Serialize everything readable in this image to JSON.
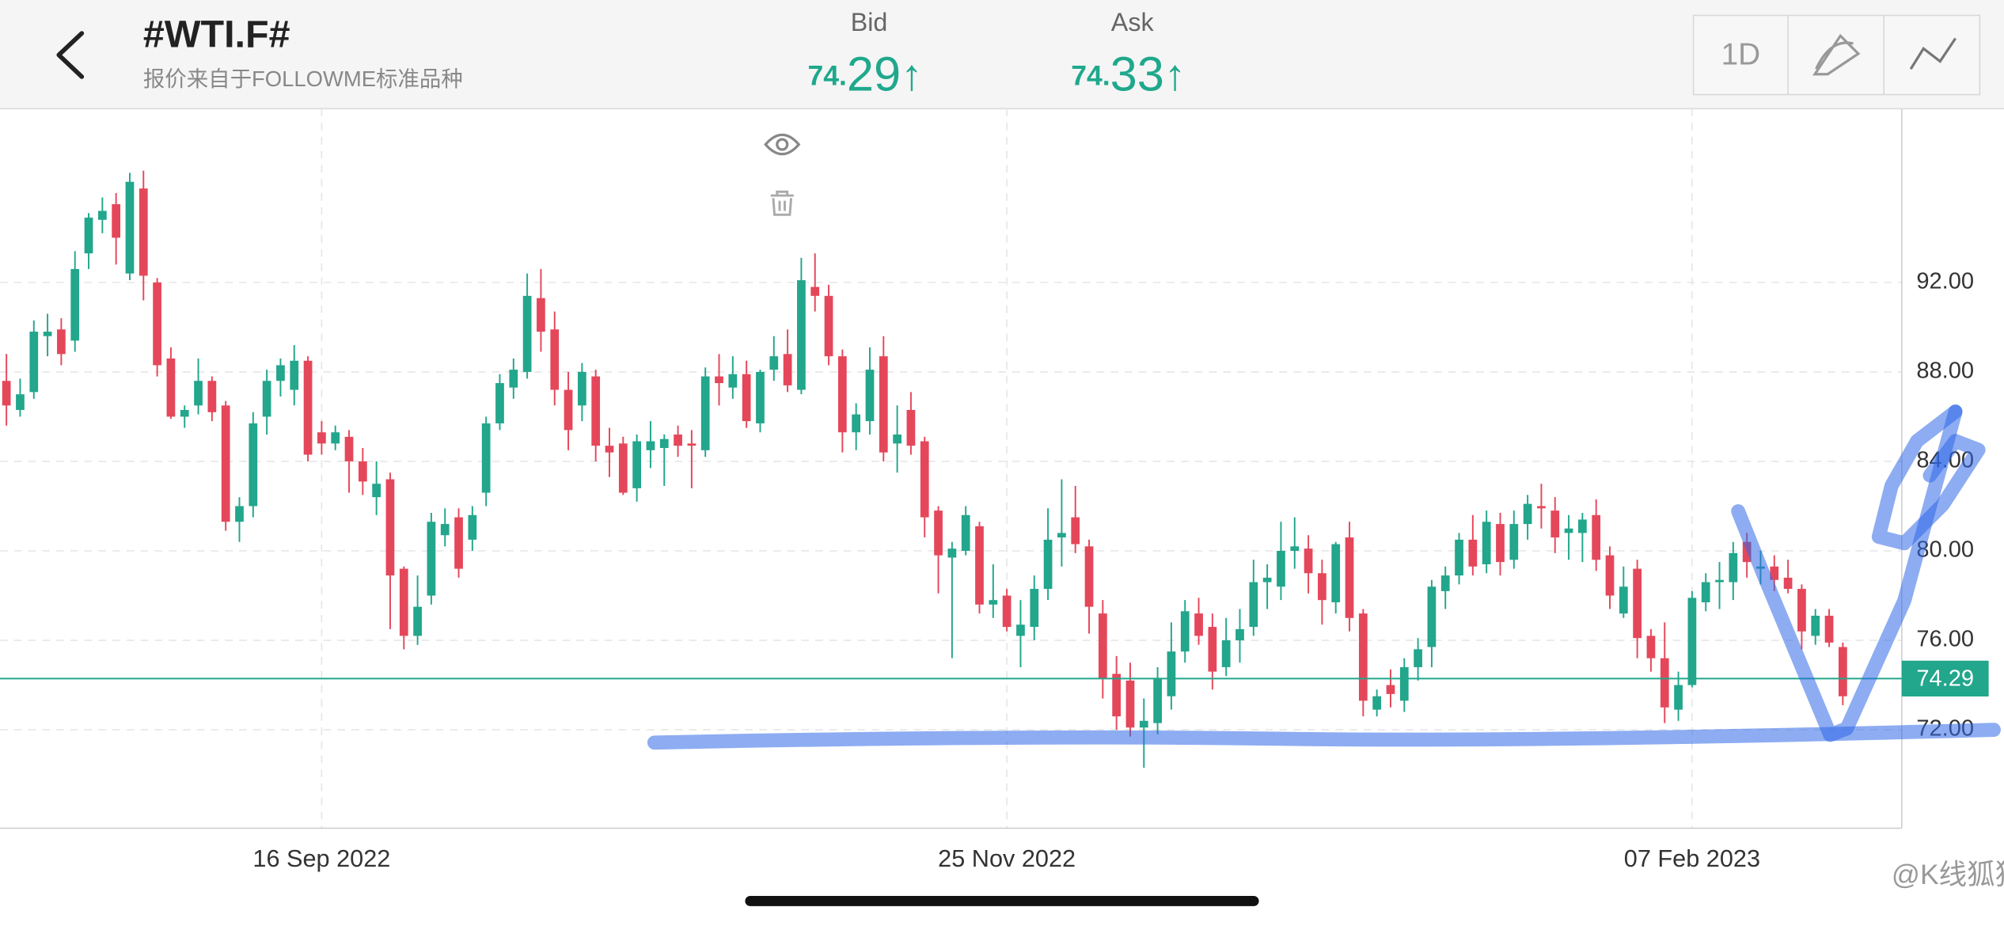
{
  "header": {
    "title": "#WTI.F#",
    "subtitle": "报价来自于FOLLOWME标准品种",
    "bid": {
      "label": "Bid",
      "int": "74.",
      "frac": "29",
      "arrow": "↑"
    },
    "ask": {
      "label": "Ask",
      "int": "74.",
      "frac": "33",
      "arrow": "↑"
    },
    "timeframe": "1D"
  },
  "chart_data": {
    "type": "candlestick",
    "up_color": "#22a68c",
    "down_color": "#e5475a",
    "grid": true,
    "xlim": [
      -0.47,
      138.3
    ],
    "xticks": [
      {
        "value": 23,
        "label": "16 Sep 2022"
      },
      {
        "value": 73,
        "label": "25 Nov 2022"
      },
      {
        "value": 123,
        "label": "07 Feb 2023"
      }
    ],
    "ylim": [
      67.6,
      99.77
    ],
    "yticks": [
      {
        "value": 72,
        "label": "72.00"
      },
      {
        "value": 76,
        "label": "76.00"
      },
      {
        "value": 80,
        "label": "80.00"
      },
      {
        "value": 84,
        "label": "84.00"
      },
      {
        "value": 88,
        "label": "88.00"
      },
      {
        "value": 92,
        "label": "92.00"
      }
    ],
    "last_price": 74.29,
    "ohlc": [
      [
        87.6,
        88.8,
        85.6,
        86.5
      ],
      [
        86.3,
        87.7,
        86,
        87
      ],
      [
        87.1,
        90.3,
        86.8,
        89.8
      ],
      [
        89.6,
        90.6,
        88.7,
        89.8
      ],
      [
        89.9,
        90.4,
        88.3,
        88.8
      ],
      [
        89.4,
        93.4,
        88.9,
        92.6
      ],
      [
        93.3,
        95.1,
        92.6,
        94.9
      ],
      [
        94.8,
        95.8,
        94.2,
        95.2
      ],
      [
        95.5,
        96,
        92.8,
        94
      ],
      [
        92.4,
        96.9,
        92.1,
        96.5
      ],
      [
        96.2,
        97,
        91.2,
        92.3
      ],
      [
        92,
        92.2,
        87.8,
        88.3
      ],
      [
        88.6,
        89.1,
        85.9,
        86
      ],
      [
        86,
        86.5,
        85.5,
        86.3
      ],
      [
        86.5,
        88.6,
        86.1,
        87.6
      ],
      [
        87.6,
        87.8,
        85.8,
        86.2
      ],
      [
        86.5,
        86.7,
        80.9,
        81.3
      ],
      [
        81.3,
        82.4,
        80.4,
        82
      ],
      [
        82,
        86.2,
        81.5,
        85.7
      ],
      [
        86,
        88.1,
        85.2,
        87.6
      ],
      [
        87.6,
        88.6,
        86.9,
        88.3
      ],
      [
        87.2,
        89.2,
        86.5,
        88.5
      ],
      [
        88.5,
        88.7,
        84,
        84.3
      ],
      [
        85.3,
        85.8,
        84.3,
        84.8
      ],
      [
        84.8,
        85.6,
        84.5,
        85.3
      ],
      [
        85.1,
        85.4,
        82.6,
        84
      ],
      [
        84,
        84.6,
        82.5,
        83.1
      ],
      [
        82.4,
        84,
        81.6,
        83
      ],
      [
        83.2,
        83.5,
        76.5,
        78.9
      ],
      [
        79.2,
        79.3,
        75.6,
        76.2
      ],
      [
        76.2,
        78.9,
        75.8,
        77.5
      ],
      [
        78,
        81.7,
        77.6,
        81.3
      ],
      [
        80.7,
        81.9,
        80.2,
        81.2
      ],
      [
        81.5,
        81.9,
        78.8,
        79.2
      ],
      [
        80.5,
        82,
        80,
        81.6
      ],
      [
        82.6,
        86,
        82,
        85.7
      ],
      [
        85.7,
        87.9,
        85.4,
        87.5
      ],
      [
        87.3,
        88.6,
        86.8,
        88.1
      ],
      [
        88,
        92.4,
        87.7,
        91.4
      ],
      [
        91.3,
        92.6,
        88.9,
        89.8
      ],
      [
        89.9,
        90.7,
        86.5,
        87.2
      ],
      [
        87.2,
        88,
        84.5,
        85.4
      ],
      [
        86.5,
        88.4,
        85.8,
        88
      ],
      [
        87.8,
        88.1,
        84,
        84.7
      ],
      [
        84.7,
        85.5,
        83.3,
        84.4
      ],
      [
        84.8,
        85.1,
        82.5,
        82.6
      ],
      [
        82.8,
        85.2,
        82.2,
        84.9
      ],
      [
        84.5,
        85.8,
        83.7,
        84.9
      ],
      [
        84.6,
        85.2,
        82.9,
        85
      ],
      [
        85.2,
        85.6,
        84.2,
        84.7
      ],
      [
        84.8,
        85.4,
        82.8,
        84.7
      ],
      [
        84.5,
        88.2,
        84.2,
        87.8
      ],
      [
        87.8,
        88.8,
        86.5,
        87.5
      ],
      [
        87.3,
        88.7,
        86.8,
        87.9
      ],
      [
        87.9,
        88.5,
        85.5,
        85.8
      ],
      [
        85.7,
        88.1,
        85.3,
        88
      ],
      [
        88.1,
        89.6,
        87.6,
        88.7
      ],
      [
        88.8,
        89.9,
        87.1,
        87.4
      ],
      [
        87.2,
        93.1,
        87,
        92.1
      ],
      [
        91.8,
        93.3,
        90.7,
        91.4
      ],
      [
        91.4,
        91.9,
        88.3,
        88.7
      ],
      [
        88.7,
        89,
        84.4,
        85.3
      ],
      [
        85.3,
        86.6,
        84.5,
        86.1
      ],
      [
        85.8,
        89.1,
        85.2,
        88.1
      ],
      [
        88.7,
        89.6,
        84,
        84.4
      ],
      [
        84.8,
        86.5,
        83.5,
        85.2
      ],
      [
        86.3,
        87.1,
        84.3,
        84.7
      ],
      [
        84.9,
        85.1,
        80.6,
        81.5
      ],
      [
        81.8,
        82,
        78.1,
        79.8
      ],
      [
        79.7,
        80.4,
        75.2,
        80.1
      ],
      [
        80,
        82,
        79.8,
        81.6
      ],
      [
        81.1,
        81.3,
        77.2,
        77.6
      ],
      [
        77.6,
        79.4,
        77,
        77.8
      ],
      [
        78,
        78.3,
        76.4,
        76.6
      ],
      [
        76.2,
        77.8,
        74.8,
        76.7
      ],
      [
        76.6,
        78.9,
        76,
        78.3
      ],
      [
        78.3,
        81.9,
        77.8,
        80.5
      ],
      [
        80.6,
        83.2,
        79.3,
        80.8
      ],
      [
        81.5,
        82.9,
        79.9,
        80.3
      ],
      [
        80.2,
        80.5,
        76.3,
        77.5
      ],
      [
        77.2,
        77.8,
        73.4,
        74.3
      ],
      [
        74.5,
        75.3,
        72,
        72.6
      ],
      [
        74.2,
        75,
        71.7,
        72.1
      ],
      [
        72.1,
        73.4,
        70.3,
        72.4
      ],
      [
        72.3,
        74.8,
        71.8,
        74.3
      ],
      [
        73.5,
        76.8,
        72.9,
        75.5
      ],
      [
        75.5,
        77.8,
        75,
        77.3
      ],
      [
        77.2,
        77.9,
        75.8,
        76.2
      ],
      [
        76.6,
        77.2,
        73.8,
        74.6
      ],
      [
        74.8,
        77,
        74.4,
        76
      ],
      [
        76,
        77.4,
        75,
        76.5
      ],
      [
        76.6,
        79.6,
        76.2,
        78.6
      ],
      [
        78.6,
        79.4,
        77.4,
        78.8
      ],
      [
        78.4,
        81.3,
        77.8,
        80
      ],
      [
        80,
        81.5,
        79.2,
        80.2
      ],
      [
        80.1,
        80.7,
        78.1,
        79
      ],
      [
        79,
        79.6,
        76.7,
        77.8
      ],
      [
        77.7,
        80.4,
        77.2,
        80.3
      ],
      [
        80.6,
        81.3,
        76.4,
        77
      ],
      [
        77.2,
        77.4,
        72.6,
        73.3
      ],
      [
        72.9,
        73.8,
        72.6,
        73.5
      ],
      [
        74,
        74.7,
        73,
        73.6
      ],
      [
        73.3,
        75.2,
        72.8,
        74.8
      ],
      [
        74.8,
        76.1,
        74.2,
        75.6
      ],
      [
        75.7,
        78.7,
        74.8,
        78.4
      ],
      [
        78.2,
        79.3,
        77.4,
        78.9
      ],
      [
        78.9,
        80.8,
        78.5,
        80.5
      ],
      [
        80.5,
        81.6,
        78.9,
        79.3
      ],
      [
        79.4,
        81.8,
        79,
        81.3
      ],
      [
        81.2,
        81.7,
        78.9,
        79.5
      ],
      [
        79.6,
        81.8,
        79.2,
        81.2
      ],
      [
        81.2,
        82.5,
        80.5,
        82.1
      ],
      [
        82,
        83,
        81,
        81.9
      ],
      [
        81.8,
        82.4,
        79.9,
        80.6
      ],
      [
        80.8,
        81.6,
        79.6,
        81
      ],
      [
        80.8,
        81.7,
        79.5,
        81.4
      ],
      [
        81.6,
        82.3,
        79.1,
        79.6
      ],
      [
        79.8,
        80.2,
        77.4,
        78
      ],
      [
        77.2,
        79.3,
        77,
        78.4
      ],
      [
        79.2,
        79.6,
        75.2,
        76.1
      ],
      [
        76.2,
        76.5,
        74.6,
        75.2
      ],
      [
        75.2,
        76.8,
        72.3,
        73
      ],
      [
        72.9,
        74.6,
        72.4,
        74
      ],
      [
        74,
        78.2,
        73.9,
        77.9
      ],
      [
        77.7,
        79,
        77.3,
        78.6
      ],
      [
        78.6,
        79.5,
        77.4,
        78.7
      ],
      [
        78.6,
        80.4,
        77.8,
        79.9
      ],
      [
        80.4,
        80.8,
        78.8,
        79.5
      ],
      [
        79.2,
        80,
        78.5,
        79.3
      ],
      [
        79.3,
        79.8,
        78.2,
        78.7
      ],
      [
        78.8,
        79.6,
        78.1,
        78.3
      ],
      [
        78.3,
        78.5,
        75.6,
        76.4
      ],
      [
        76.2,
        77.4,
        75.8,
        77.1
      ],
      [
        77.1,
        77.4,
        75.7,
        75.9
      ],
      [
        75.7,
        75.9,
        73.1,
        73.5
      ]
    ]
  },
  "watermark": "@K线狐狸"
}
